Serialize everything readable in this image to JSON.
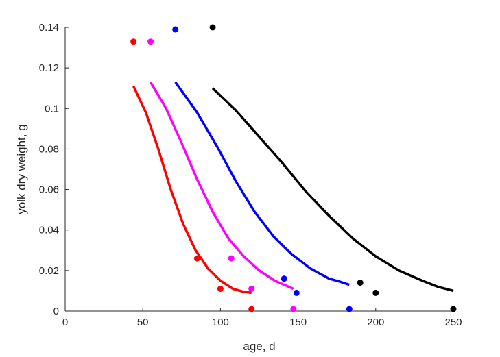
{
  "chart_data": {
    "type": "scatter",
    "xlabel": "age, d",
    "ylabel": "yolk dry weight, g",
    "xlim": [
      0,
      250
    ],
    "ylim": [
      0,
      0.14
    ],
    "xticks": [
      "0",
      "50",
      "100",
      "150",
      "200",
      "250"
    ],
    "yticks": [
      "0",
      "0.02",
      "0.04",
      "0.06",
      "0.08",
      "0.1",
      "0.12",
      "0.14"
    ],
    "grid": false,
    "series": [
      {
        "color": "#ff0000",
        "points": [
          [
            44,
            0.133
          ],
          [
            85,
            0.026
          ],
          [
            100,
            0.011
          ],
          [
            120,
            0.001
          ]
        ],
        "curve": [
          [
            44,
            0.111
          ],
          [
            52,
            0.098
          ],
          [
            60,
            0.08
          ],
          [
            68,
            0.06
          ],
          [
            76,
            0.043
          ],
          [
            84,
            0.03
          ],
          [
            92,
            0.021
          ],
          [
            100,
            0.015
          ],
          [
            108,
            0.011
          ],
          [
            115,
            0.0095
          ],
          [
            120,
            0.009
          ]
        ]
      },
      {
        "color": "#ff00ff",
        "points": [
          [
            55,
            0.133
          ],
          [
            107,
            0.026
          ],
          [
            120,
            0.011
          ],
          [
            147,
            0.001
          ]
        ],
        "curve": [
          [
            55,
            0.113
          ],
          [
            65,
            0.1
          ],
          [
            75,
            0.083
          ],
          [
            85,
            0.065
          ],
          [
            95,
            0.049
          ],
          [
            105,
            0.036
          ],
          [
            115,
            0.027
          ],
          [
            125,
            0.02
          ],
          [
            135,
            0.015
          ],
          [
            141,
            0.013
          ],
          [
            147,
            0.011
          ]
        ]
      },
      {
        "color": "#0000ff",
        "points": [
          [
            71,
            0.139
          ],
          [
            141,
            0.016
          ],
          [
            149,
            0.009
          ],
          [
            183,
            0.001
          ]
        ],
        "curve": [
          [
            71,
            0.113
          ],
          [
            85,
            0.098
          ],
          [
            98,
            0.081
          ],
          [
            110,
            0.064
          ],
          [
            122,
            0.049
          ],
          [
            134,
            0.037
          ],
          [
            146,
            0.028
          ],
          [
            158,
            0.021
          ],
          [
            170,
            0.016
          ],
          [
            177,
            0.0145
          ],
          [
            183,
            0.013
          ]
        ]
      },
      {
        "color": "#000000",
        "points": [
          [
            95,
            0.14
          ],
          [
            190,
            0.014
          ],
          [
            200,
            0.009
          ],
          [
            250,
            0.001
          ]
        ],
        "curve": [
          [
            95,
            0.11
          ],
          [
            110,
            0.099
          ],
          [
            125,
            0.086
          ],
          [
            140,
            0.073
          ],
          [
            155,
            0.059
          ],
          [
            170,
            0.047
          ],
          [
            185,
            0.036
          ],
          [
            200,
            0.027
          ],
          [
            215,
            0.02
          ],
          [
            230,
            0.015
          ],
          [
            240,
            0.012
          ],
          [
            250,
            0.01
          ]
        ]
      }
    ]
  }
}
